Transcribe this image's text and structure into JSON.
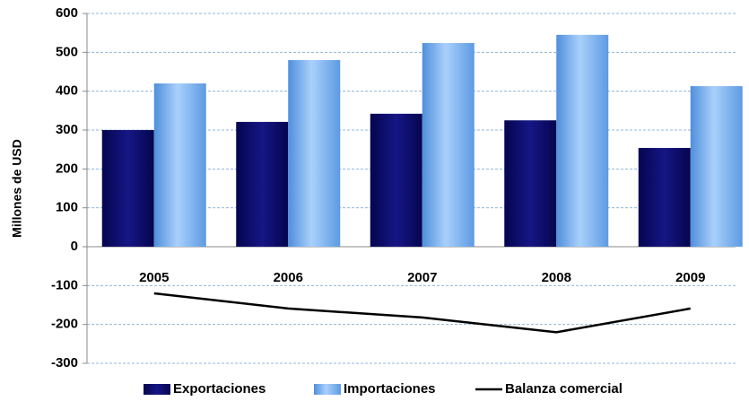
{
  "chart_data": {
    "type": "bar",
    "y_label": "Millones de USD",
    "categories": [
      "2005",
      "2006",
      "2007",
      "2008",
      "2009"
    ],
    "series": [
      {
        "name": "Exportaciones",
        "color": "#0b0b6b",
        "values": [
          300,
          321,
          342,
          325,
          254
        ]
      },
      {
        "name": "Importaciones",
        "color": "#6aa6ea",
        "values": [
          420,
          480,
          524,
          545,
          413
        ]
      },
      {
        "name": "Balanza comercial",
        "color": "#000000",
        "type": "line",
        "values": [
          -120,
          -159,
          -182,
          -220,
          -159
        ]
      }
    ],
    "ylim": [
      -300,
      600
    ],
    "yticks": [
      -300,
      -200,
      -100,
      0,
      100,
      200,
      300,
      400,
      500,
      600
    ],
    "grid": true,
    "legend": "bottom"
  }
}
